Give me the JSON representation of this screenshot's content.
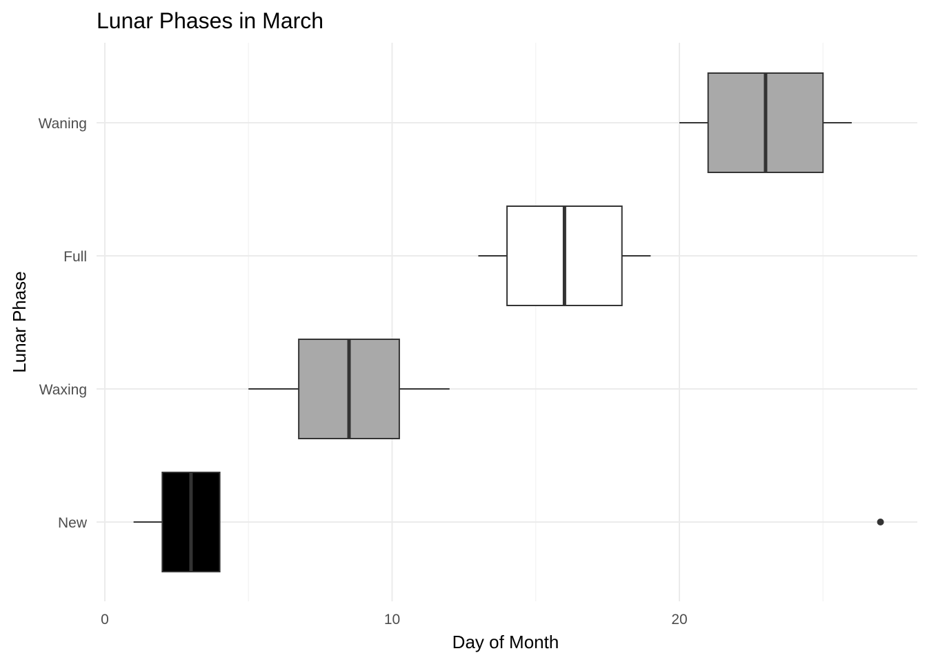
{
  "chart_data": {
    "type": "boxplot",
    "orientation": "horizontal",
    "title": "Lunar Phases in March",
    "xlabel": "Day of Month",
    "ylabel": "Lunar Phase",
    "xlim": [
      0,
      28.3
    ],
    "x_ticks": [
      0,
      10,
      20
    ],
    "grid": true,
    "legend": "none",
    "categories": [
      "New",
      "Waxing",
      "Full",
      "Waning"
    ],
    "series": [
      {
        "category": "New",
        "fill": "#000000",
        "whisker_low": 1,
        "q1": 2,
        "median": 3,
        "q3": 4,
        "whisker_high": 4,
        "outliers": [
          27
        ]
      },
      {
        "category": "Waxing",
        "fill": "#a9a9a9",
        "whisker_low": 5,
        "q1": 6.75,
        "median": 8.5,
        "q3": 10.25,
        "whisker_high": 12,
        "outliers": []
      },
      {
        "category": "Full",
        "fill": "#ffffff",
        "whisker_low": 13,
        "q1": 14,
        "median": 16,
        "q3": 18,
        "whisker_high": 19,
        "outliers": []
      },
      {
        "category": "Waning",
        "fill": "#a9a9a9",
        "whisker_low": 20,
        "q1": 21,
        "median": 23,
        "q3": 25,
        "whisker_high": 26,
        "outliers": []
      }
    ]
  }
}
